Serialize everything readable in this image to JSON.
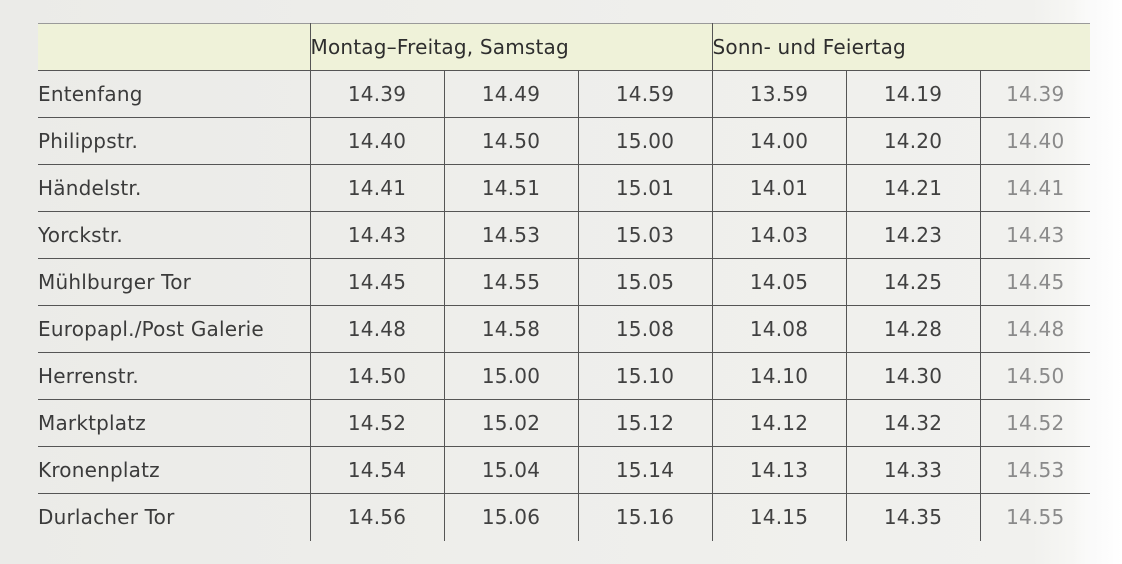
{
  "table": {
    "corner_label": "",
    "group_weekday": "Montag–Freitag, Samstag",
    "group_sunday": "Sonn- und Feiertag",
    "rows": [
      {
        "stop": "Entenfang",
        "times": [
          "14.39",
          "14.49",
          "14.59",
          "13.59",
          "14.19",
          "14.39"
        ]
      },
      {
        "stop": "Philippstr.",
        "times": [
          "14.40",
          "14.50",
          "15.00",
          "14.00",
          "14.20",
          "14.40"
        ]
      },
      {
        "stop": "Händelstr.",
        "times": [
          "14.41",
          "14.51",
          "15.01",
          "14.01",
          "14.21",
          "14.41"
        ]
      },
      {
        "stop": "Yorckstr.",
        "times": [
          "14.43",
          "14.53",
          "15.03",
          "14.03",
          "14.23",
          "14.43"
        ]
      },
      {
        "stop": "Mühlburger Tor",
        "times": [
          "14.45",
          "14.55",
          "15.05",
          "14.05",
          "14.25",
          "14.45"
        ]
      },
      {
        "stop": "Europapl./Post Galerie",
        "times": [
          "14.48",
          "14.58",
          "15.08",
          "14.08",
          "14.28",
          "14.48"
        ]
      },
      {
        "stop": "Herrenstr.",
        "times": [
          "14.50",
          "15.00",
          "15.10",
          "14.10",
          "14.30",
          "14.50"
        ]
      },
      {
        "stop": "Marktplatz",
        "times": [
          "14.52",
          "15.02",
          "15.12",
          "14.12",
          "14.32",
          "14.52"
        ]
      },
      {
        "stop": "Kronenplatz",
        "times": [
          "14.54",
          "15.04",
          "15.14",
          "14.13",
          "14.33",
          "14.53"
        ]
      },
      {
        "stop": "Durlacher Tor",
        "times": [
          "14.56",
          "15.06",
          "15.16",
          "14.15",
          "14.35",
          "14.55"
        ]
      }
    ]
  },
  "colors": {
    "header_background": "#eff2d9",
    "rule": "#555555",
    "text": "#3a3a3a"
  }
}
